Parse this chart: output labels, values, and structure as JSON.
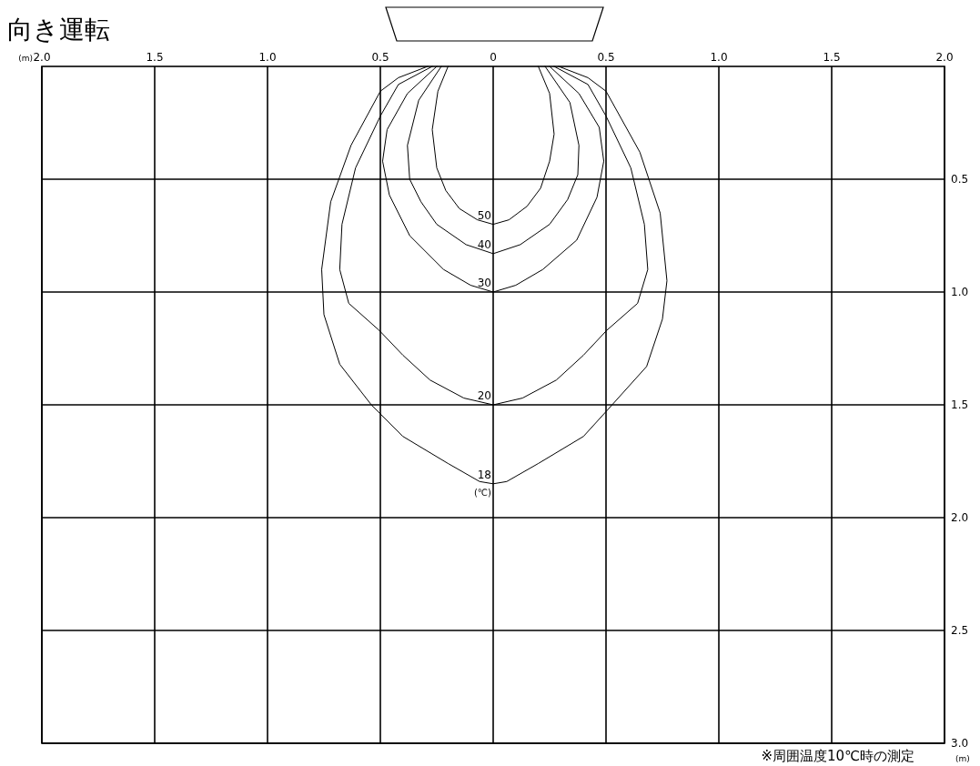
{
  "chart_data": {
    "type": "line",
    "title": "向き運転",
    "xlabel": "(m)",
    "ylabel": "(m)",
    "xlim": [
      -2,
      2
    ],
    "ylim": [
      3,
      0
    ],
    "xticks": [
      {
        "value": -2,
        "label": "2.0"
      },
      {
        "value": -1.5,
        "label": "1.5"
      },
      {
        "value": -1,
        "label": "1.0"
      },
      {
        "value": -0.5,
        "label": "0.5"
      },
      0,
      {
        "value": 0.5,
        "label": "0.5"
      },
      {
        "value": 1,
        "label": "1.0"
      },
      {
        "value": 1.5,
        "label": "1.5"
      },
      {
        "value": 2,
        "label": "2.0"
      }
    ],
    "yticks": [
      {
        "value": 0.5,
        "label": "0.5"
      },
      {
        "value": 1,
        "label": "1.0"
      },
      {
        "value": 1.5,
        "label": "1.5"
      },
      {
        "value": 2,
        "label": "2.0"
      },
      {
        "value": 2.5,
        "label": "2.5"
      },
      {
        "value": 3,
        "label": "3.0"
      }
    ],
    "grid": true,
    "legend": false,
    "marker": "none",
    "line_style": "solid",
    "series": [
      {
        "name": "50",
        "color": "#000000",
        "x": [
          -0.2,
          -0.245,
          -0.27,
          -0.25,
          -0.21,
          -0.15,
          -0.07,
          0,
          0.07,
          0.15,
          0.21,
          0.25,
          0.27,
          0.25,
          0.2
        ],
        "values": [
          0,
          0.11,
          0.28,
          0.45,
          0.55,
          0.63,
          0.68,
          0.7,
          0.68,
          0.62,
          0.54,
          0.42,
          0.3,
          0.12,
          0
        ]
      },
      {
        "name": "40",
        "color": "#000000",
        "x": [
          -0.23,
          -0.33,
          -0.38,
          -0.37,
          -0.32,
          -0.25,
          -0.12,
          0,
          0.12,
          0.25,
          0.33,
          0.375,
          0.38,
          0.34,
          0.23
        ],
        "values": [
          0,
          0.15,
          0.35,
          0.5,
          0.6,
          0.7,
          0.79,
          0.83,
          0.79,
          0.7,
          0.59,
          0.48,
          0.35,
          0.16,
          0
        ]
      },
      {
        "name": "30",
        "color": "#000000",
        "x": [
          -0.25,
          -0.38,
          -0.47,
          -0.49,
          -0.46,
          -0.37,
          -0.22,
          -0.1,
          0,
          0.1,
          0.22,
          0.37,
          0.46,
          0.49,
          0.47,
          0.38,
          0.25
        ],
        "values": [
          0,
          0.12,
          0.28,
          0.42,
          0.57,
          0.75,
          0.9,
          0.97,
          1,
          0.97,
          0.9,
          0.77,
          0.58,
          0.42,
          0.27,
          0.12,
          0
        ]
      },
      {
        "name": "20",
        "color": "#000000",
        "x": [
          -0.27,
          -0.42,
          -0.5,
          -0.61,
          -0.67,
          -0.68,
          -0.64,
          -0.505,
          -0.4,
          -0.28,
          -0.13,
          0,
          0.13,
          0.28,
          0.4,
          0.503,
          0.64,
          0.685,
          0.67,
          0.61,
          0.5,
          0.42,
          0.27
        ],
        "values": [
          0,
          0.08,
          0.22,
          0.45,
          0.7,
          0.9,
          1.05,
          1.17,
          1.28,
          1.39,
          1.47,
          1.5,
          1.47,
          1.39,
          1.28,
          1.17,
          1.05,
          0.9,
          0.7,
          0.45,
          0.22,
          0.08,
          0
        ]
      },
      {
        "name": "18",
        "color": "#000000",
        "x": [
          -0.29,
          -0.42,
          -0.5,
          -0.63,
          -0.72,
          -0.76,
          -0.75,
          -0.68,
          -0.54,
          -0.4,
          -0.2,
          -0.06,
          0,
          0.06,
          0.2,
          0.4,
          0.5,
          0.68,
          0.75,
          0.77,
          0.74,
          0.65,
          0.5,
          0.42,
          0.29
        ],
        "values": [
          0,
          0.05,
          0.11,
          0.35,
          0.6,
          0.9,
          1.1,
          1.32,
          1.5,
          1.64,
          1.76,
          1.84,
          1.85,
          1.84,
          1.76,
          1.64,
          1.53,
          1.33,
          1.12,
          0.95,
          0.65,
          0.38,
          0.11,
          0.05,
          0
        ]
      }
    ],
    "annotations": [
      {
        "text": "(℃)",
        "x": 0,
        "y": 1.85
      },
      "※周囲温度10℃時の測定"
    ]
  }
}
